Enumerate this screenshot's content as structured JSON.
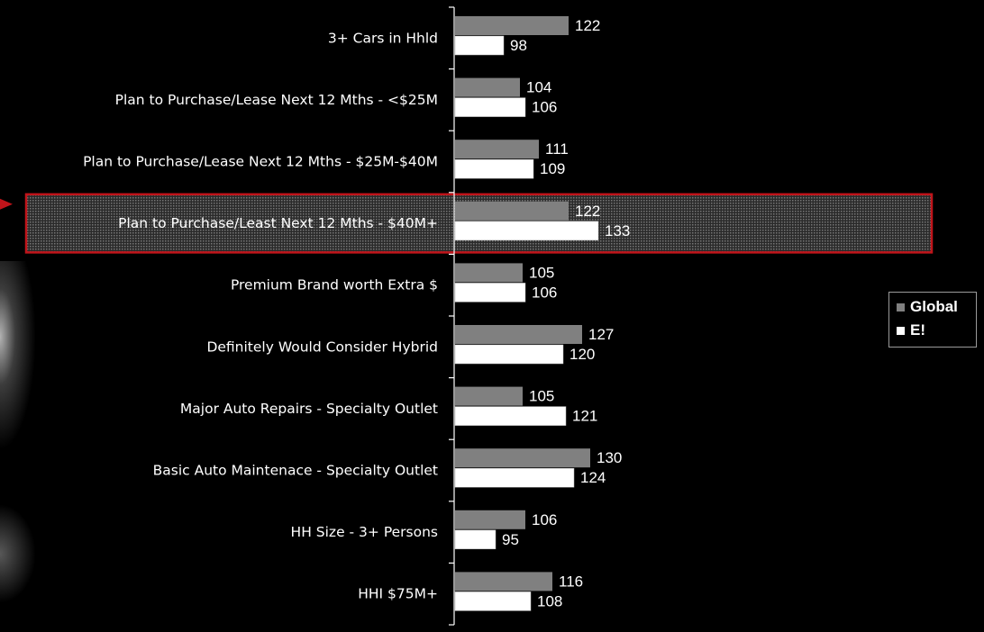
{
  "chart_data": {
    "type": "bar",
    "orientation": "horizontal",
    "categories": [
      "3+ Cars in Hhld",
      "Plan to Purchase/Lease Next 12 Mths - <$25M",
      "Plan to Purchase/Lease Next 12 Mths - $25M-$40M",
      "Plan to Purchase/Least Next 12 Mths - $40M+",
      "Premium Brand worth Extra $",
      "Definitely Would Consider Hybrid",
      "Major Auto Repairs - Specialty Outlet",
      "Basic Auto Maintenace - Specialty Outlet",
      "HH Size - 3+ Persons",
      "HHI $75M+"
    ],
    "series": [
      {
        "name": "Global",
        "values": [
          122,
          104,
          111,
          122,
          105,
          127,
          105,
          130,
          106,
          116
        ],
        "color": "#808080"
      },
      {
        "name": "E!",
        "values": [
          98,
          106,
          109,
          133,
          106,
          120,
          121,
          124,
          95,
          108
        ],
        "color": "#ffffff"
      }
    ],
    "highlighted_category": "Plan to Purchase/Least Next 12 Mths - $40M+",
    "highlight_color": "#c0141a",
    "title": "",
    "xlabel": "",
    "ylabel": "",
    "xlim": [
      0,
      140
    ],
    "grid": false,
    "data_labels": true,
    "legend_placement": "right"
  },
  "legend": {
    "items": [
      {
        "label": "Global"
      },
      {
        "label": "E!"
      }
    ]
  }
}
